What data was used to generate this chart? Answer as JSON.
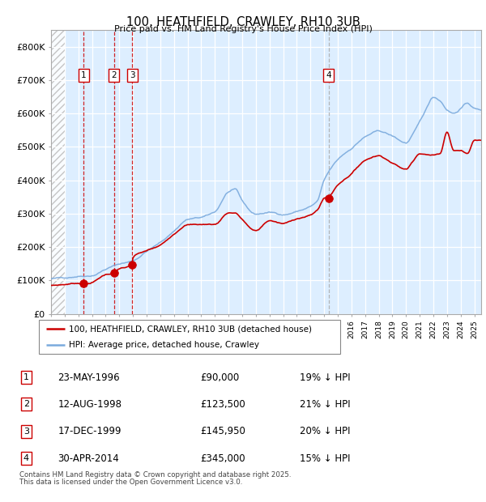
{
  "title": "100, HEATHFIELD, CRAWLEY, RH10 3UB",
  "subtitle": "Price paid vs. HM Land Registry's House Price Index (HPI)",
  "legend_label_red": "100, HEATHFIELD, CRAWLEY, RH10 3UB (detached house)",
  "legend_label_blue": "HPI: Average price, detached house, Crawley",
  "footer1": "Contains HM Land Registry data © Crown copyright and database right 2025.",
  "footer2": "This data is licensed under the Open Government Licence v3.0.",
  "transactions": [
    {
      "label": "1",
      "date": "23-MAY-1996",
      "date_num": 1996.39,
      "price": 90000,
      "pct": "19% ↓ HPI"
    },
    {
      "label": "2",
      "date": "12-AUG-1998",
      "date_num": 1998.61,
      "price": 123500,
      "pct": "21% ↓ HPI"
    },
    {
      "label": "3",
      "date": "17-DEC-1999",
      "date_num": 1999.96,
      "price": 145950,
      "pct": "20% ↓ HPI"
    },
    {
      "label": "4",
      "date": "30-APR-2014",
      "date_num": 2014.33,
      "price": 345000,
      "pct": "15% ↓ HPI"
    }
  ],
  "hpi_color": "#7aaadd",
  "price_color": "#cc0000",
  "vline_color_red": "#cc0000",
  "vline_color_gray": "#aaaaaa",
  "marker_color": "#cc0000",
  "background_plot": "#ddeeff",
  "hatch_region_end": 1995.0,
  "xmin": 1994.0,
  "xmax": 2025.5,
  "ymin": 0,
  "ymax": 850000,
  "yticks": [
    0,
    100000,
    200000,
    300000,
    400000,
    500000,
    600000,
    700000,
    800000
  ],
  "ytick_labels": [
    "£0",
    "£100K",
    "£200K",
    "£300K",
    "£400K",
    "£500K",
    "£600K",
    "£700K",
    "£800K"
  ]
}
